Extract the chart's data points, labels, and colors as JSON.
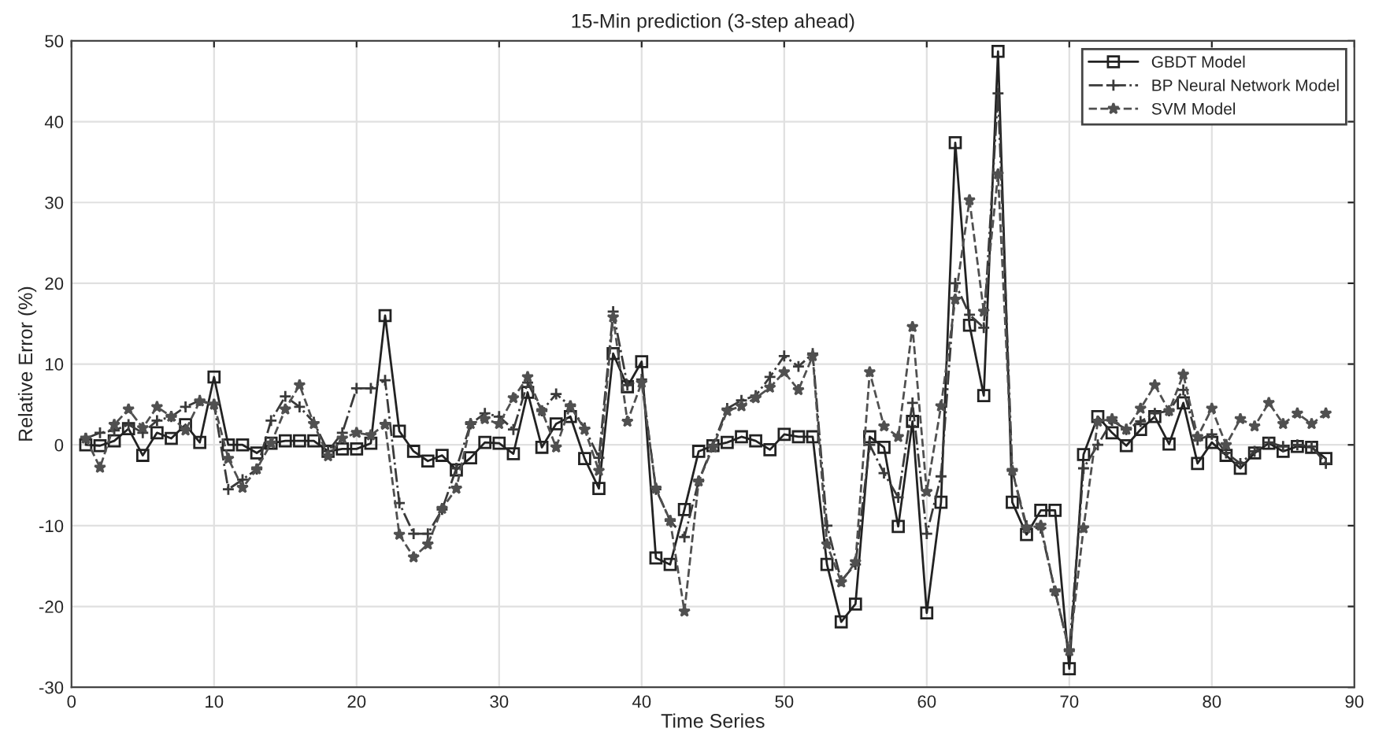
{
  "chart_data": {
    "type": "line",
    "title": "15-Min prediction (3-step ahead)",
    "xlabel": "Time Series",
    "ylabel": "Relative Error (%)",
    "x": [
      1,
      2,
      3,
      4,
      5,
      6,
      7,
      8,
      9,
      10,
      11,
      12,
      13,
      14,
      15,
      16,
      17,
      18,
      19,
      20,
      21,
      22,
      23,
      24,
      25,
      26,
      27,
      28,
      29,
      30,
      31,
      32,
      33,
      34,
      35,
      36,
      37,
      38,
      39,
      40,
      41,
      42,
      43,
      44,
      45,
      46,
      47,
      48,
      49,
      50,
      51,
      52,
      53,
      54,
      55,
      56,
      57,
      58,
      59,
      60,
      61,
      62,
      63,
      64,
      65,
      66,
      67,
      68,
      69,
      70,
      71,
      72,
      73,
      74,
      75,
      76,
      77,
      78,
      79,
      80,
      81,
      82,
      83,
      84,
      85,
      86,
      87,
      88
    ],
    "series": [
      {
        "name": "GBDT Model",
        "color": "#222222",
        "marker": "square",
        "line_style": "solid",
        "values": [
          0,
          -0.1,
          0.5,
          2,
          -1.3,
          1.5,
          0.8,
          2.5,
          0.3,
          8.4,
          0,
          0,
          -1,
          0.2,
          0.5,
          0.5,
          0.5,
          -0.8,
          -0.5,
          -0.5,
          0.2,
          16,
          1.7,
          -0.8,
          -2,
          -1.3,
          -3.1,
          -1.6,
          0.3,
          0.2,
          -1.1,
          6.5,
          -0.3,
          2.6,
          3.5,
          -1.7,
          -5.4,
          11.3,
          7.2,
          10.3,
          -14,
          -14.8,
          -8,
          -0.8,
          -0.1,
          0.3,
          1,
          0.5,
          -0.6,
          1.3,
          1,
          1,
          -14.8,
          -21.9,
          -19.7,
          1,
          -0.3,
          -10.1,
          2.9,
          -20.8,
          -7.1,
          37.4,
          14.8,
          6.1,
          48.7,
          -7.1,
          -11.1,
          -8.1,
          -8.1,
          -27.7,
          -1.2,
          3.5,
          1.5,
          -0.1,
          1.9,
          3.5,
          0.1,
          5.2,
          -2.3,
          0.3,
          -1.3,
          -2.9,
          -1,
          0.2,
          -0.8,
          -0.2,
          -0.3,
          -1.7
        ]
      },
      {
        "name": "BP Neural Network Model",
        "color": "#3a3a3a",
        "marker": "cross",
        "line_style": "dashdot",
        "values": [
          0.8,
          1.5,
          1.8,
          2.5,
          1.5,
          3,
          3.5,
          4.7,
          5.5,
          5,
          -5.5,
          -4.3,
          -3,
          3,
          6,
          4.7,
          2.8,
          -0.8,
          1.5,
          7,
          7,
          8,
          -7.2,
          -11,
          -11,
          -8,
          -2.9,
          2.6,
          3.9,
          3.5,
          1.9,
          7.7,
          4.2,
          6.3,
          4.8,
          2.1,
          -1.6,
          16.5,
          7.4,
          8.1,
          -5.5,
          -9.4,
          -11.4,
          -4.5,
          0,
          4.5,
          5.5,
          6.1,
          8.4,
          11,
          9.7,
          11.3,
          -10,
          -16.8,
          -14.8,
          0,
          -3.5,
          -6.5,
          5.2,
          -11,
          -3.9,
          20,
          16.1,
          14.5,
          43.5,
          -3.2,
          -10,
          -10.3,
          -18.1,
          -25.5,
          -2.9,
          0,
          3,
          1.9,
          2.9,
          3.9,
          4.2,
          6.8,
          0.6,
          1.3,
          -1,
          -2.3,
          -0.8,
          0.3,
          -0.2,
          0,
          -0.2,
          -2.3
        ]
      },
      {
        "name": "SVM Model",
        "color": "#505050",
        "marker": "star",
        "line_style": "dashed",
        "values": [
          0.8,
          -2.8,
          2.5,
          4.4,
          2.1,
          4.7,
          3.5,
          1.8,
          5.4,
          5,
          -1.7,
          -5.3,
          -3,
          0.2,
          4.4,
          7.4,
          2.6,
          -1.4,
          0.8,
          1.5,
          1.2,
          2.5,
          -11.1,
          -13.9,
          -12.3,
          -7.9,
          -5.4,
          2.6,
          3.2,
          2.6,
          5.8,
          8.4,
          4.2,
          -0.3,
          4.8,
          1.9,
          -3.2,
          15.8,
          2.9,
          7.7,
          -5.4,
          -9.4,
          -20.6,
          -4.5,
          -0.3,
          4.2,
          4.8,
          5.8,
          7.1,
          9,
          6.8,
          11,
          -12.3,
          -17,
          -14.5,
          9,
          2.3,
          1,
          14.6,
          -5.8,
          4.8,
          18,
          30.3,
          16.5,
          33.5,
          -3.2,
          -10.3,
          -10,
          -18.1,
          -25.5,
          -10.3,
          2.9,
          3.2,
          1.9,
          4.5,
          7.4,
          4.2,
          8.7,
          1,
          4.5,
          0,
          3.2,
          2.3,
          5.2,
          2.6,
          3.9,
          2.6,
          3.9
        ]
      }
    ],
    "xlim": [
      0,
      90
    ],
    "xticks": [
      0,
      10,
      20,
      30,
      40,
      50,
      60,
      70,
      80,
      90
    ],
    "ylim": [
      -30,
      50
    ],
    "yticks": [
      -30,
      -20,
      -10,
      0,
      10,
      20,
      30,
      40,
      50
    ],
    "grid": true,
    "legend": "top right"
  }
}
